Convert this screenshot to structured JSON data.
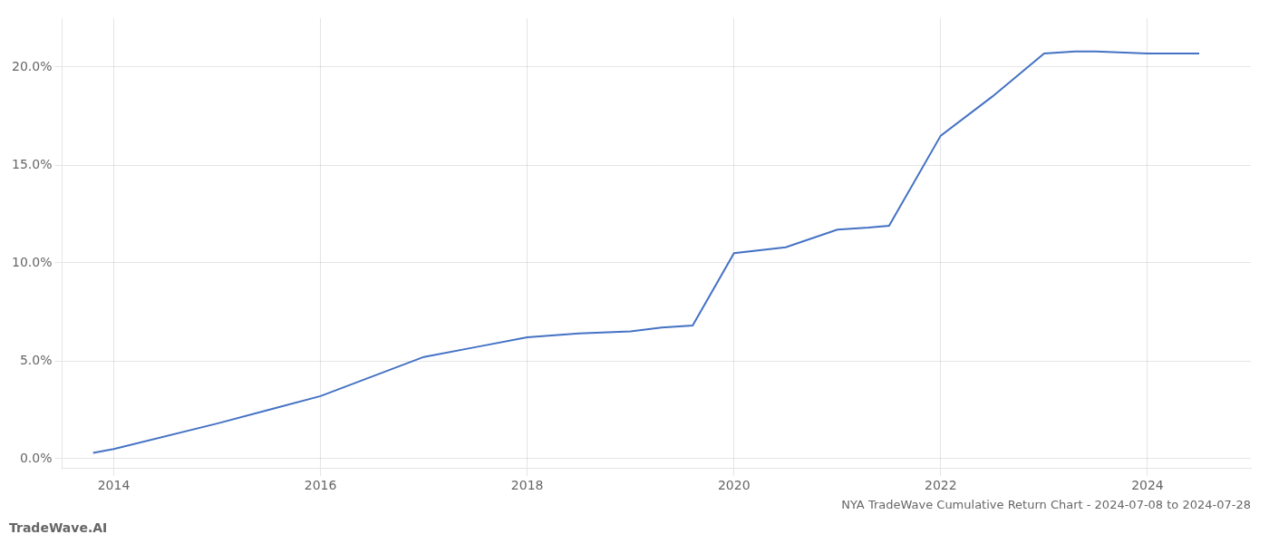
{
  "chart_data": {
    "type": "line",
    "title": "TradeWave.AI",
    "subtitle": "NYA TradeWave Cumulative Return Chart - 2024-07-08 to 2024-07-28",
    "x": [
      2013.8,
      2014.0,
      2015.0,
      2015.5,
      2016.0,
      2017.0,
      2017.5,
      2018.0,
      2018.5,
      2019.0,
      2019.3,
      2019.6,
      2020.0,
      2020.5,
      2021.0,
      2021.3,
      2021.5,
      2022.0,
      2022.5,
      2023.0,
      2023.3,
      2023.5,
      2024.0,
      2024.5
    ],
    "values": [
      0.003,
      0.005,
      0.018,
      0.025,
      0.032,
      0.052,
      0.057,
      0.062,
      0.064,
      0.065,
      0.067,
      0.068,
      0.105,
      0.108,
      0.117,
      0.118,
      0.119,
      0.165,
      0.185,
      0.207,
      0.208,
      0.208,
      0.207,
      0.207
    ],
    "color": "#4472c4",
    "xlim": [
      2013.5,
      2025.0
    ],
    "ylim": [
      -0.005,
      0.225
    ],
    "xticks": [
      2014,
      2016,
      2018,
      2020,
      2022,
      2024
    ],
    "yticks": [
      {
        "value": 0.0,
        "label": "0.0%"
      },
      {
        "value": 0.05,
        "label": "5.0%"
      },
      {
        "value": 0.1,
        "label": "10.0%"
      },
      {
        "value": 0.15,
        "label": "15.0%"
      },
      {
        "value": 0.2,
        "label": "20.0%"
      }
    ],
    "grid": true
  }
}
